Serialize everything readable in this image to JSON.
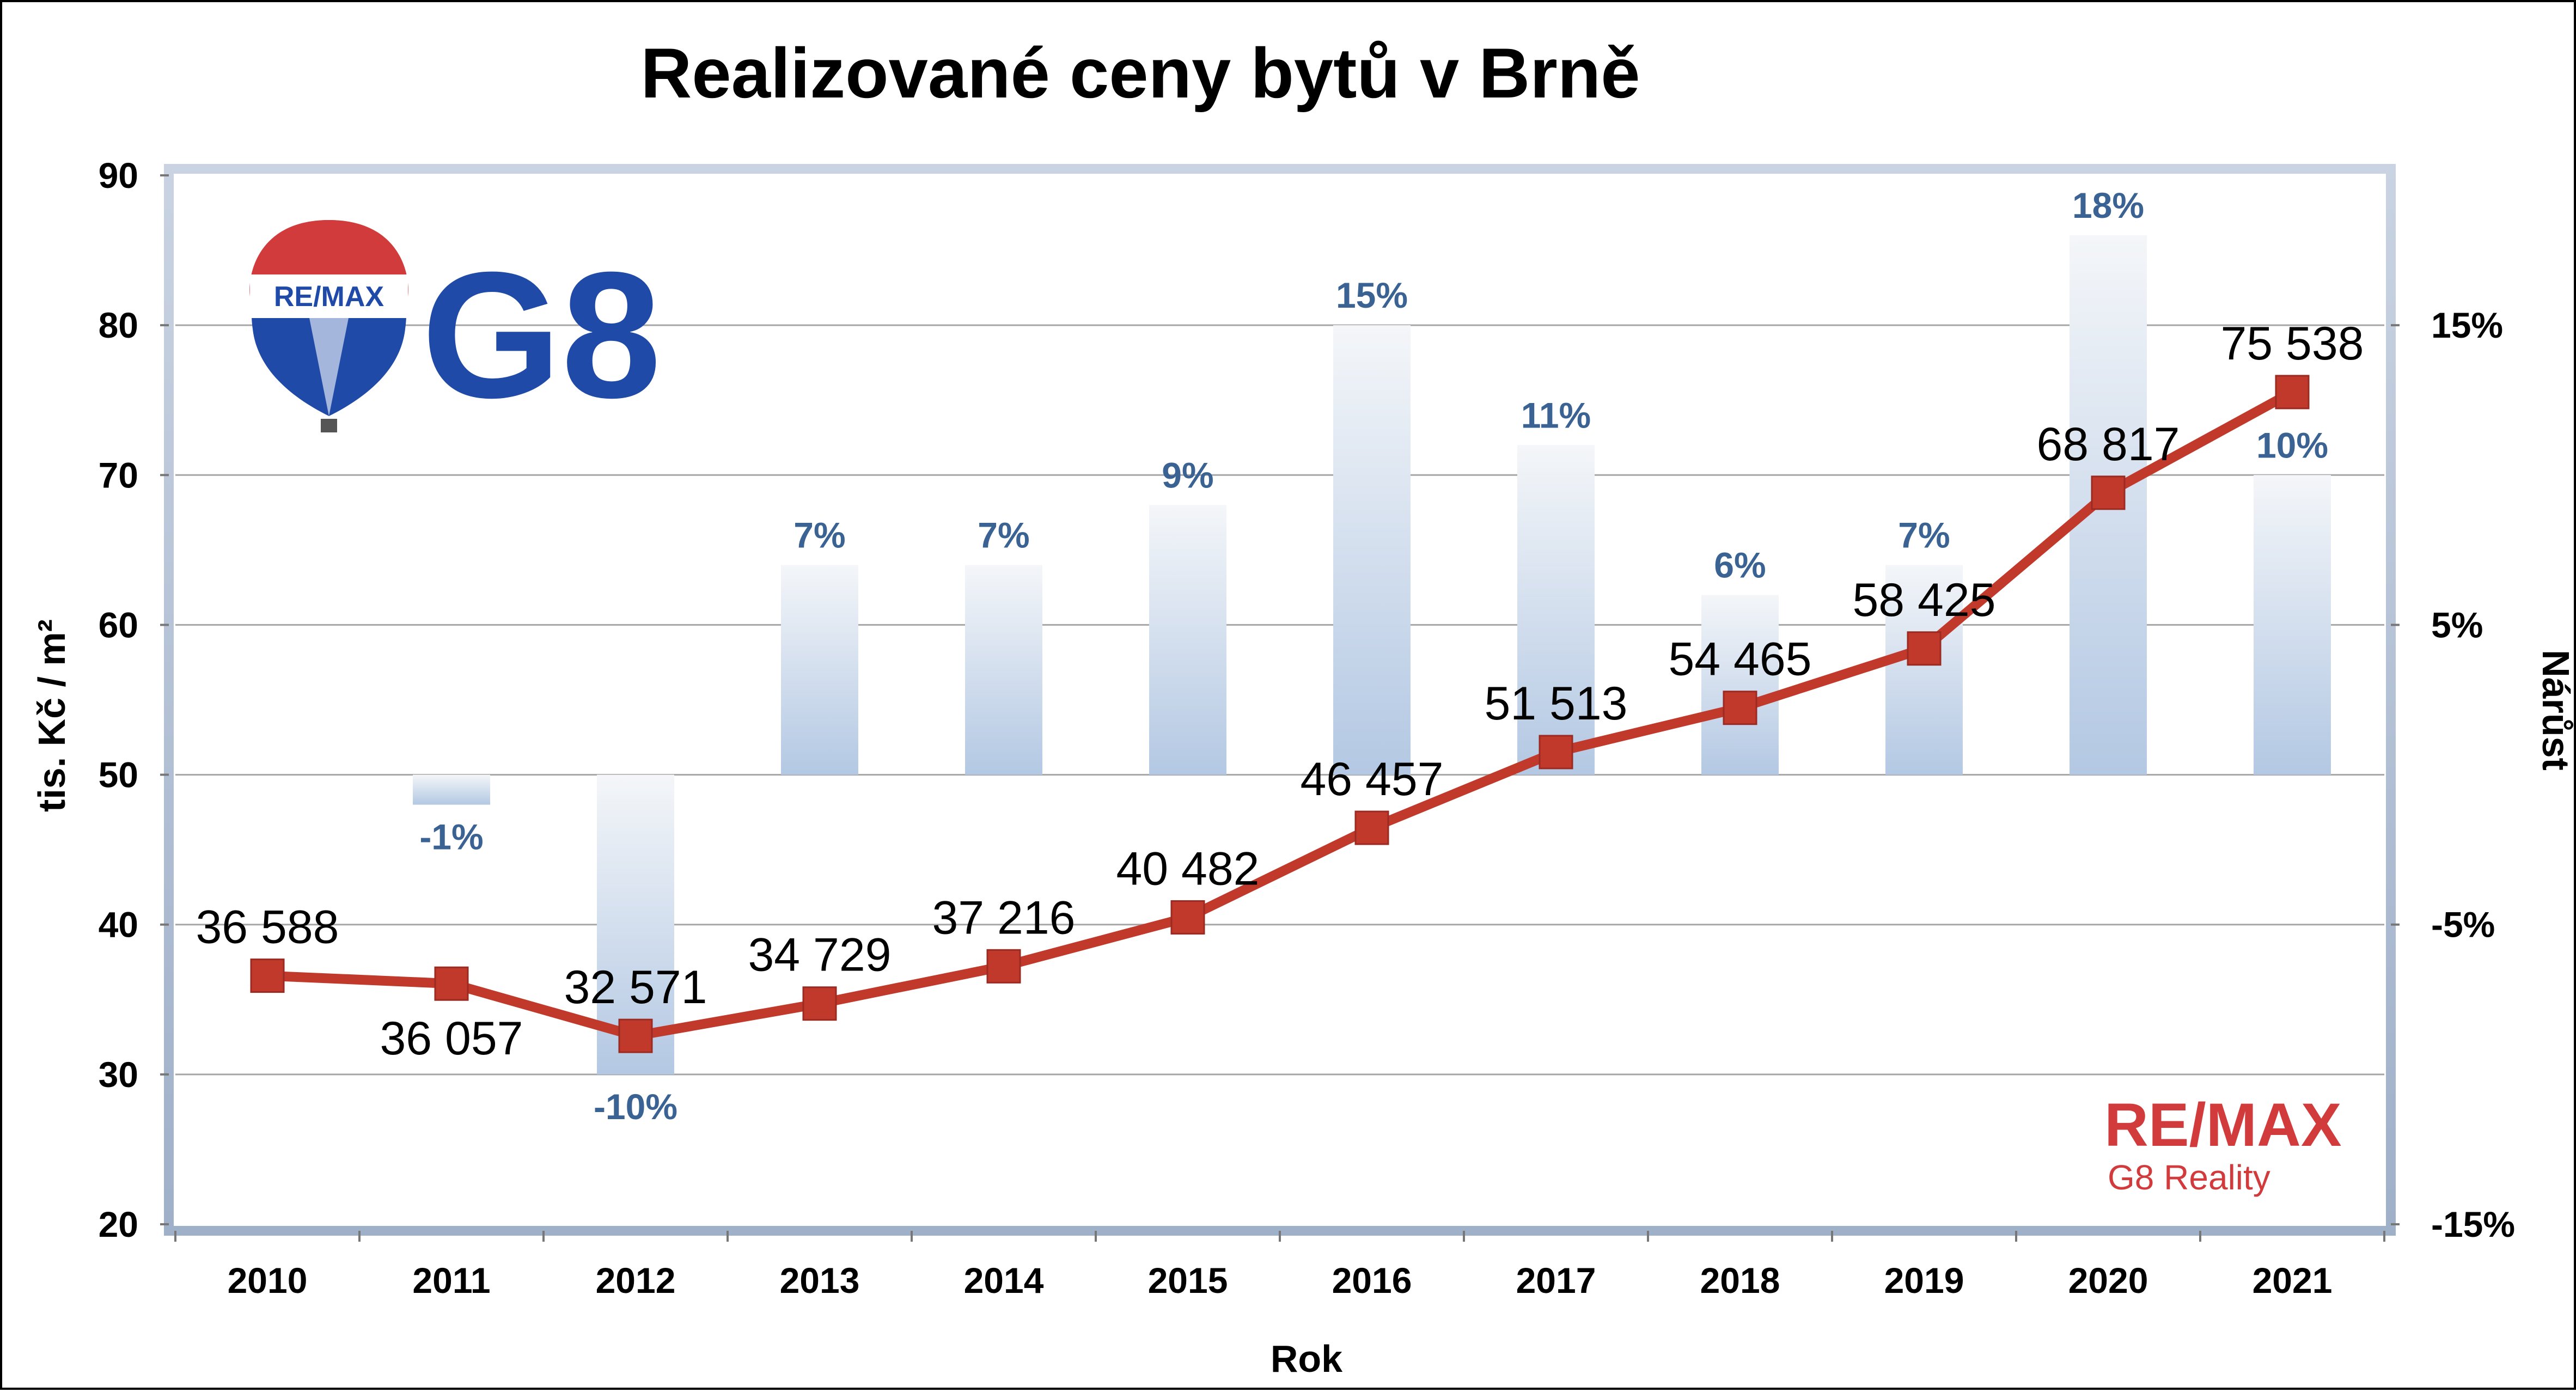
{
  "chart_data": {
    "type": "bar+line",
    "title": "Realizované ceny bytů v Brně",
    "xlabel": "Rok",
    "ylabel_left": "tis. Kč / m²",
    "ylabel_right": "Nárůst",
    "categories": [
      "2010",
      "2011",
      "2012",
      "2013",
      "2014",
      "2015",
      "2016",
      "2017",
      "2018",
      "2019",
      "2020",
      "2021"
    ],
    "left_axis": {
      "min": 20,
      "max": 90,
      "ticks": [
        "20",
        "30",
        "40",
        "50",
        "60",
        "70",
        "80",
        "90"
      ]
    },
    "right_axis": {
      "min": -15,
      "max": 20,
      "ticks": [
        "-15%",
        "-5%",
        "5%",
        "15%"
      ],
      "tick_values": [
        -15,
        -5,
        5,
        15
      ]
    },
    "price_series": {
      "values": [
        36588,
        36057,
        32571,
        34729,
        37216,
        40482,
        46457,
        51513,
        54465,
        58425,
        68817,
        75538
      ],
      "labels": [
        "36 588",
        "36 057",
        "32 571",
        "34 729",
        "37 216",
        "40 482",
        "46 457",
        "51 513",
        "54 465",
        "58 425",
        "68 817",
        "75 538"
      ],
      "color": "#c0392b"
    },
    "growth_series": {
      "values": [
        null,
        -1,
        -10,
        7,
        7,
        9,
        15,
        11,
        6,
        7,
        18,
        10
      ],
      "labels": [
        "",
        "-1%",
        "-10%",
        "7%",
        "7%",
        "9%",
        "15%",
        "11%",
        "6%",
        "7%",
        "18%",
        "10%"
      ],
      "color": "#b8cde6"
    },
    "grid": true
  },
  "logos": {
    "balloon_text": "RE/MAX",
    "g8_text": "G8",
    "brand_text": "RE/MAX",
    "brand_sub": "G8 Reality",
    "brand_red": "#d23b3b",
    "brand_blue": "#1f4aa8"
  }
}
